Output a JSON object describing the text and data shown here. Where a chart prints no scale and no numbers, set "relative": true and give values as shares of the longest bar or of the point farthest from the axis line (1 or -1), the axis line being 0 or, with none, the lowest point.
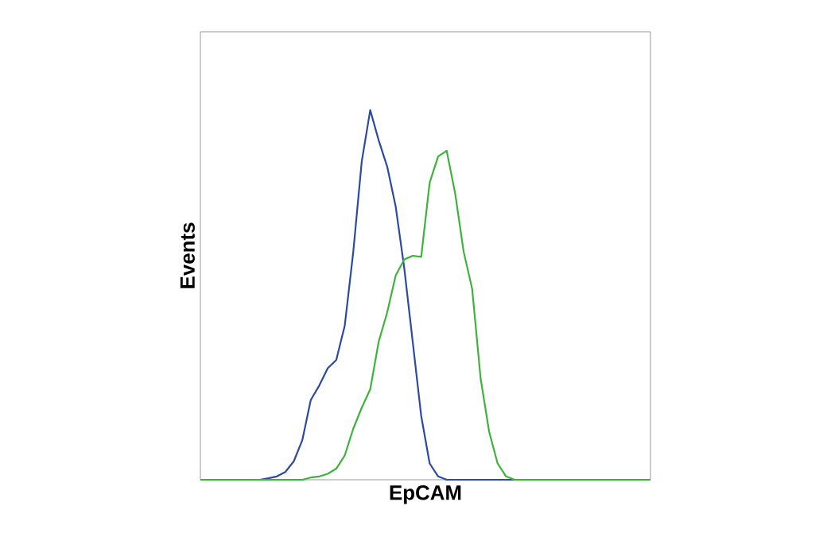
{
  "chart_data": {
    "type": "line",
    "xlabel": "EpCAM",
    "ylabel": "Events",
    "relative": true,
    "categories": [
      null,
      null,
      null,
      null,
      null,
      null,
      null,
      null,
      null,
      null,
      null,
      null,
      null,
      null,
      null,
      null,
      null,
      null,
      null,
      null,
      null,
      null,
      null,
      null,
      null,
      null,
      null,
      null,
      null,
      null,
      null,
      null,
      null,
      null,
      null,
      null,
      null,
      null,
      null,
      null,
      null,
      null,
      null,
      null,
      null,
      null,
      null,
      null,
      null,
      null,
      null,
      null,
      null,
      null
    ],
    "series": [
      {
        "color": "#2b4aa0",
        "values": [
          null,
          null,
          null,
          null,
          null,
          null,
          0,
          0,
          0.004,
          0.009,
          0.021,
          0.05,
          0.107,
          0.216,
          0.255,
          0.302,
          0.324,
          0.417,
          0.616,
          0.861,
          1,
          0.918,
          0.847,
          0.739,
          0.574,
          0.374,
          0.173,
          0.044,
          0.009,
          0,
          0,
          0,
          0,
          0,
          0,
          0,
          0,
          0,
          0,
          null,
          null,
          null,
          null,
          null,
          null,
          null,
          null,
          null,
          null,
          null,
          null,
          null,
          null,
          null
        ]
      },
      {
        "color": "#3cb43c",
        "values": [
          0,
          0,
          0,
          0,
          0,
          0,
          0,
          0,
          0,
          0,
          0,
          0,
          0,
          0.006,
          0.009,
          0.016,
          0.03,
          0.066,
          0.138,
          0.195,
          0.245,
          0.374,
          0.453,
          0.553,
          0.596,
          0.606,
          0.603,
          0.804,
          0.875,
          0.89,
          0.775,
          0.617,
          0.517,
          0.274,
          0.13,
          0.044,
          0.009,
          0,
          0,
          0,
          0,
          0,
          0,
          0,
          0,
          0,
          0,
          0,
          0,
          0,
          0,
          0,
          0,
          0
        ]
      }
    ]
  }
}
